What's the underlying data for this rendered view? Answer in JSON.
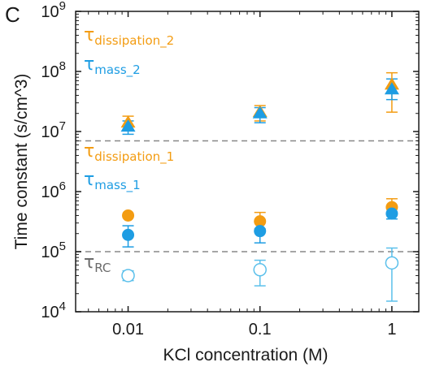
{
  "chart_data": {
    "type": "scatter",
    "panel_label": "C",
    "title": "",
    "xlabel": "KCl concentration (M)",
    "ylabel": "Time constant (s/cm^3)",
    "x_scale": "log",
    "y_scale": "log",
    "xlim": [
      0.004,
      1.6
    ],
    "ylim": [
      10000,
      1000000000
    ],
    "x_ticks": [
      0.01,
      0.1,
      1
    ],
    "x_tick_labels": [
      "0.01",
      "0.1",
      "1"
    ],
    "y_ticks": [
      10000,
      100000,
      1000000,
      10000000,
      100000000,
      1000000000
    ],
    "y_tick_labels": [
      {
        "base": "10",
        "exp": "4"
      },
      {
        "base": "10",
        "exp": "5"
      },
      {
        "base": "10",
        "exp": "6"
      },
      {
        "base": "10",
        "exp": "7"
      },
      {
        "base": "10",
        "exp": "8"
      },
      {
        "base": "10",
        "exp": "9"
      }
    ],
    "grid": false,
    "reference_lines": [
      7000000,
      100000
    ],
    "colors": {
      "dissipation": "#f39c12",
      "mass": "#1e9de3",
      "rc": "#6a6a6a",
      "rc_marker": "#5bc0eb",
      "reference_line": "#888888",
      "axis": "#1a1a1a"
    },
    "series": [
      {
        "key": "dissipation_2",
        "marker": "triangle",
        "color": "#f39c12",
        "points": [
          {
            "x": 0.01,
            "y": 14000000,
            "lo": 11000000,
            "hi": 18000000
          },
          {
            "x": 0.1,
            "y": 21000000,
            "lo": 15000000,
            "hi": 27000000
          },
          {
            "x": 1,
            "y": 60000000,
            "lo": 21000000,
            "hi": 95000000
          }
        ]
      },
      {
        "key": "mass_2",
        "marker": "triangle",
        "color": "#1e9de3",
        "points": [
          {
            "x": 0.01,
            "y": 12000000,
            "lo": 9000000,
            "hi": 15000000
          },
          {
            "x": 0.1,
            "y": 20000000,
            "lo": 14000000,
            "hi": 25000000
          },
          {
            "x": 1,
            "y": 50000000,
            "lo": 34000000,
            "hi": 75000000
          }
        ]
      },
      {
        "key": "dissipation_1",
        "marker": "circle",
        "color": "#f39c12",
        "points": [
          {
            "x": 0.01,
            "y": 400000,
            "lo": 400000,
            "hi": 400000
          },
          {
            "x": 0.1,
            "y": 320000,
            "lo": 240000,
            "hi": 450000
          },
          {
            "x": 1,
            "y": 550000,
            "lo": 420000,
            "hi": 760000
          }
        ]
      },
      {
        "key": "mass_1",
        "marker": "circle",
        "color": "#1e9de3",
        "points": [
          {
            "x": 0.01,
            "y": 190000,
            "lo": 120000,
            "hi": 270000
          },
          {
            "x": 0.1,
            "y": 220000,
            "lo": 140000,
            "hi": 310000
          },
          {
            "x": 1,
            "y": 430000,
            "lo": 350000,
            "hi": 540000
          }
        ]
      },
      {
        "key": "rc",
        "marker": "open-circle",
        "color": "#5bc0eb",
        "points": [
          {
            "x": 0.01,
            "y": 40000,
            "lo": 33000,
            "hi": 48000
          },
          {
            "x": 0.1,
            "y": 50000,
            "lo": 27000,
            "hi": 72000
          },
          {
            "x": 1,
            "y": 65000,
            "lo": 15000,
            "hi": 115000
          }
        ]
      }
    ],
    "annotations": [
      {
        "key": "dissipation_2",
        "symbol": "τ",
        "subscript": "dissipation_2",
        "color": "#f39c12"
      },
      {
        "key": "mass_2",
        "symbol": "τ",
        "subscript": "mass_2",
        "color": "#1e9de3"
      },
      {
        "key": "dissipation_1",
        "symbol": "τ",
        "subscript": "dissipation_1",
        "color": "#f39c12"
      },
      {
        "key": "mass_1",
        "symbol": "τ",
        "subscript": "mass_1",
        "color": "#1e9de3"
      },
      {
        "key": "rc",
        "symbol": "τ",
        "subscript": "RC",
        "color": "#6a6a6a"
      }
    ]
  }
}
